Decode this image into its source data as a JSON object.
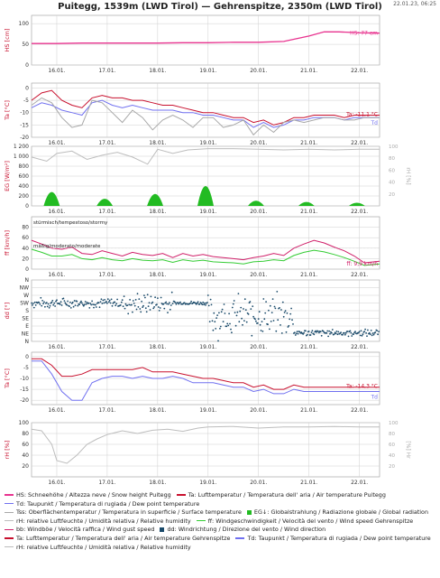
{
  "title": "Puitegg, 1539m (LWD Tirol) — Gehrenspitze, 2350m (LWD Tirol)",
  "timestamp": "22.01.23, 06:25",
  "colors": {
    "snow": "#e8338f",
    "air": "#c8102e",
    "dew": "#7070f0",
    "surface": "#a8a8a8",
    "radiation": "#22bb22",
    "gust": "#d0206a",
    "wind": "#33cc33",
    "direction": "#1a4a6a",
    "humidity": "#bdbdbd",
    "grid": "#cfcfcf",
    "axis_label": "#c8102e"
  },
  "chart_data": [
    {
      "type": "line",
      "panel": "snow_height",
      "ylabel": "HS [cm]",
      "yticks": [
        "100",
        "50",
        "0"
      ],
      "ylim": [
        0,
        120
      ],
      "x_ticks": [
        "16.01.",
        "17.01.",
        "18.01.",
        "19.01.",
        "20.01.",
        "21.01.",
        "22.01."
      ],
      "x_range_days": [
        15.5,
        22.4
      ],
      "series": [
        {
          "name": "HS",
          "color": "snow",
          "x": [
            15.5,
            16,
            16.5,
            17,
            17.5,
            18,
            18.5,
            19,
            19.5,
            20,
            20.5,
            21,
            21.3,
            21.6,
            22,
            22.4
          ],
          "y": [
            52,
            52,
            53,
            53,
            53,
            53,
            54,
            54,
            55,
            55,
            57,
            70,
            80,
            80,
            78,
            77
          ]
        }
      ],
      "end_label": "HS: 77 cm"
    },
    {
      "type": "line",
      "panel": "temperature_puitegg",
      "ylabel": "Ta [°C]",
      "yticks": [
        "0",
        "-5",
        "-10",
        "-15",
        "-20"
      ],
      "ylim": [
        -20,
        2
      ],
      "x_ticks": [
        "16.01.",
        "17.01.",
        "18.01.",
        "19.01.",
        "20.01.",
        "21.01.",
        "22.01."
      ],
      "series": [
        {
          "name": "Ta",
          "color": "air",
          "x": [
            15.5,
            15.7,
            15.9,
            16.1,
            16.3,
            16.5,
            16.7,
            16.9,
            17.1,
            17.3,
            17.5,
            17.7,
            17.9,
            18.1,
            18.3,
            18.5,
            18.7,
            18.9,
            19.1,
            19.3,
            19.5,
            19.7,
            19.9,
            20.1,
            20.3,
            20.5,
            20.7,
            20.9,
            21.1,
            21.3,
            21.5,
            21.7,
            21.9,
            22.1,
            22.4
          ],
          "y": [
            -5,
            -2,
            -1,
            -5,
            -7,
            -8,
            -4,
            -3,
            -4,
            -4,
            -5,
            -5,
            -6,
            -7,
            -7,
            -8,
            -9,
            -10,
            -10,
            -11,
            -12,
            -12,
            -14,
            -13,
            -15,
            -14,
            -12,
            -12,
            -11,
            -11,
            -11,
            -12,
            -11,
            -11,
            -11
          ]
        },
        {
          "name": "Td",
          "color": "dew",
          "x": [
            15.5,
            15.7,
            15.9,
            16.1,
            16.3,
            16.5,
            16.7,
            16.9,
            17.1,
            17.3,
            17.5,
            17.7,
            17.9,
            18.1,
            18.3,
            18.5,
            18.7,
            18.9,
            19.1,
            19.3,
            19.5,
            19.7,
            19.9,
            20.1,
            20.3,
            20.5,
            20.7,
            20.9,
            21.1,
            21.3,
            21.5,
            21.7,
            21.9,
            22.1,
            22.4
          ],
          "y": [
            -8,
            -6,
            -7,
            -9,
            -10,
            -11,
            -6,
            -5,
            -7,
            -8,
            -7,
            -8,
            -9,
            -9,
            -9,
            -10,
            -10,
            -11,
            -11,
            -12,
            -13,
            -13,
            -16,
            -14,
            -16,
            -15,
            -13,
            -13,
            -12,
            -12,
            -12,
            -13,
            -12,
            -12,
            -12
          ]
        },
        {
          "name": "Tss",
          "color": "surface",
          "x": [
            15.5,
            15.7,
            15.9,
            16.1,
            16.3,
            16.5,
            16.7,
            16.9,
            17.1,
            17.3,
            17.5,
            17.7,
            17.9,
            18.1,
            18.3,
            18.5,
            18.7,
            18.9,
            19.1,
            19.3,
            19.5,
            19.7,
            19.9,
            20.1,
            20.3,
            20.5,
            20.7,
            20.9,
            21.1,
            21.3,
            21.5,
            21.7,
            21.9,
            22.1,
            22.4
          ],
          "y": [
            -7,
            -4,
            -6,
            -12,
            -16,
            -15,
            -5,
            -6,
            -10,
            -14,
            -9,
            -12,
            -17,
            -13,
            -11,
            -13,
            -16,
            -12,
            -12,
            -16,
            -15,
            -13,
            -19,
            -15,
            -18,
            -14,
            -13,
            -14,
            -13,
            -12,
            -12,
            -13,
            -13,
            -12,
            -12
          ]
        }
      ],
      "end_labels": [
        "Ta: -11,1 °C",
        "Td"
      ]
    },
    {
      "type": "area",
      "panel": "radiation_humidity",
      "ylabel": "EG [W/m²]",
      "yticks": [
        "1 200",
        "1 000",
        "800",
        "600",
        "400",
        "200",
        "0"
      ],
      "ylim": [
        0,
        1200
      ],
      "y2label": "rH [%]",
      "y2ticks": [
        "100",
        "80",
        "60",
        "40",
        "20"
      ],
      "y2lim": [
        0,
        100
      ],
      "x_ticks": [
        "16.01.",
        "17.01.",
        "18.01.",
        "19.01.",
        "20.01.",
        "21.01.",
        "22.01."
      ],
      "series": [
        {
          "name": "EG",
          "color": "radiation",
          "daily_peaks_x": [
            15.9,
            16.95,
            17.95,
            18.95,
            19.95,
            20.95,
            21.95
          ],
          "daily_peaks_y": [
            350,
            180,
            300,
            500,
            130,
            100,
            80
          ]
        },
        {
          "name": "rH",
          "color": "humidity",
          "x": [
            15.5,
            15.8,
            16.0,
            16.3,
            16.6,
            16.9,
            17.2,
            17.5,
            17.8,
            18.0,
            18.3,
            18.6,
            19.0,
            19.5,
            20.0,
            20.5,
            21.0,
            21.5,
            22.0,
            22.4
          ],
          "y": [
            82,
            75,
            88,
            92,
            78,
            85,
            90,
            82,
            70,
            95,
            88,
            94,
            96,
            96,
            95,
            94,
            95,
            94,
            95,
            95
          ]
        }
      ]
    },
    {
      "type": "line",
      "panel": "wind_speed",
      "ylabel": "ff [km/h]",
      "yticks": [
        "80",
        "60",
        "40",
        "20",
        "0"
      ],
      "ylim": [
        0,
        100
      ],
      "x_ticks": [
        "16.01.",
        "17.01.",
        "18.01.",
        "19.01.",
        "20.01.",
        "21.01.",
        "22.01."
      ],
      "annotations": [
        "stürmisch/tempestoso/stormy",
        "mäßig/moderato/moderate"
      ],
      "series": [
        {
          "name": "bb",
          "color": "gust",
          "x": [
            15.5,
            15.7,
            15.9,
            16.1,
            16.3,
            16.5,
            16.7,
            16.9,
            17.1,
            17.3,
            17.5,
            17.7,
            17.9,
            18.1,
            18.3,
            18.5,
            18.7,
            18.9,
            19.1,
            19.3,
            19.5,
            19.7,
            19.9,
            20.1,
            20.3,
            20.5,
            20.7,
            20.9,
            21.1,
            21.3,
            21.5,
            21.7,
            21.9,
            22.1,
            22.4
          ],
          "y": [
            55,
            48,
            40,
            38,
            42,
            30,
            28,
            35,
            30,
            25,
            32,
            28,
            26,
            30,
            22,
            30,
            25,
            28,
            24,
            22,
            20,
            18,
            22,
            25,
            30,
            26,
            40,
            48,
            55,
            50,
            42,
            35,
            25,
            12,
            15
          ]
        },
        {
          "name": "ff",
          "color": "wind",
          "x": [
            15.5,
            15.7,
            15.9,
            16.1,
            16.3,
            16.5,
            16.7,
            16.9,
            17.1,
            17.3,
            17.5,
            17.7,
            17.9,
            18.1,
            18.3,
            18.5,
            18.7,
            18.9,
            19.1,
            19.3,
            19.5,
            19.7,
            19.9,
            20.1,
            20.3,
            20.5,
            20.7,
            20.9,
            21.1,
            21.3,
            21.5,
            21.7,
            21.9,
            22.1,
            22.4
          ],
          "y": [
            38,
            32,
            25,
            25,
            28,
            20,
            18,
            22,
            18,
            16,
            20,
            17,
            16,
            18,
            13,
            18,
            15,
            17,
            14,
            13,
            12,
            10,
            14,
            15,
            18,
            16,
            26,
            32,
            36,
            33,
            28,
            22,
            15,
            7,
            10
          ]
        }
      ],
      "end_label": "ff: 9,9 km/h"
    },
    {
      "type": "scatter",
      "panel": "wind_direction",
      "ylabel": "dd [°]",
      "yticks": [
        "N",
        "NW",
        "W",
        "SW",
        "S",
        "SE",
        "E",
        "NE",
        "N"
      ],
      "ylim": [
        0,
        360
      ],
      "x_ticks": [
        "16.01.",
        "17.01.",
        "18.01.",
        "19.01.",
        "20.01.",
        "21.01.",
        "22.01."
      ],
      "series": [
        {
          "name": "dd",
          "color": "direction",
          "segments": [
            {
              "x_from": 15.5,
              "x_to": 17.3,
              "dir_center": 225,
              "spread": 35
            },
            {
              "x_from": 17.3,
              "x_to": 18.3,
              "dir_center": 220,
              "spread": 80
            },
            {
              "x_from": 18.3,
              "x_to": 19.0,
              "dir_center": 225,
              "spread": 15
            },
            {
              "x_from": 19.0,
              "x_to": 20.7,
              "dir_center": 150,
              "spread": 150
            },
            {
              "x_from": 20.7,
              "x_to": 22.4,
              "dir_center": 50,
              "spread": 25
            }
          ]
        }
      ]
    },
    {
      "type": "line",
      "panel": "temperature_gehrenspitze",
      "ylabel": "Ta [°C]",
      "yticks": [
        "0",
        "-5",
        "-10",
        "-15",
        "-20"
      ],
      "ylim": [
        -22,
        2
      ],
      "x_ticks": [
        "16.01.",
        "17.01.",
        "18.01.",
        "19.01.",
        "20.01.",
        "21.01.",
        "22.01."
      ],
      "series": [
        {
          "name": "Ta",
          "color": "air",
          "x": [
            15.5,
            15.7,
            15.9,
            16.1,
            16.3,
            16.5,
            16.7,
            16.9,
            17.1,
            17.3,
            17.5,
            17.7,
            17.9,
            18.1,
            18.3,
            18.5,
            18.7,
            18.9,
            19.1,
            19.3,
            19.5,
            19.7,
            19.9,
            20.1,
            20.3,
            20.5,
            20.7,
            20.9,
            21.1,
            21.3,
            21.5,
            21.7,
            21.9,
            22.1,
            22.4
          ],
          "y": [
            -1,
            -1,
            -4,
            -9,
            -9,
            -8,
            -6,
            -6,
            -6,
            -6,
            -6,
            -5,
            -7,
            -7,
            -7,
            -8,
            -9,
            -10,
            -10,
            -11,
            -12,
            -12,
            -14,
            -13,
            -15,
            -15,
            -13,
            -14,
            -14,
            -14,
            -14,
            -14,
            -14,
            -14,
            -14
          ]
        },
        {
          "name": "Td",
          "color": "dew",
          "x": [
            15.5,
            15.7,
            15.9,
            16.1,
            16.3,
            16.5,
            16.7,
            16.9,
            17.1,
            17.3,
            17.5,
            17.7,
            17.9,
            18.1,
            18.3,
            18.5,
            18.7,
            18.9,
            19.1,
            19.3,
            19.5,
            19.7,
            19.9,
            20.1,
            20.3,
            20.5,
            20.7,
            20.9,
            21.1,
            21.3,
            21.5,
            21.7,
            21.9,
            22.1,
            22.4
          ],
          "y": [
            -2,
            -2,
            -8,
            -16,
            -20,
            -20,
            -12,
            -10,
            -9,
            -9,
            -10,
            -9,
            -10,
            -10,
            -9,
            -10,
            -12,
            -12,
            -12,
            -13,
            -14,
            -14,
            -16,
            -15,
            -17,
            -17,
            -15,
            -16,
            -16,
            -16,
            -16,
            -16,
            -16,
            -16,
            -16
          ]
        }
      ],
      "end_labels": [
        "Ta: -14,3 °C",
        "Td"
      ]
    },
    {
      "type": "line",
      "panel": "humidity_gehrenspitze",
      "ylabel": "rH [%]",
      "yticks": [
        "100",
        "80",
        "60",
        "40",
        "20"
      ],
      "ylim": [
        0,
        100
      ],
      "x_ticks": [
        "16.01.",
        "17.01.",
        "18.01.",
        "19.01.",
        "20.01.",
        "21.01.",
        "22.01."
      ],
      "series": [
        {
          "name": "rH",
          "color": "humidity",
          "x": [
            15.5,
            15.7,
            15.9,
            16.0,
            16.2,
            16.4,
            16.6,
            16.8,
            17.0,
            17.3,
            17.6,
            17.9,
            18.2,
            18.5,
            18.8,
            19.0,
            19.5,
            20.0,
            20.5,
            21.0,
            21.5,
            22.0,
            22.4
          ],
          "y": [
            88,
            85,
            60,
            30,
            25,
            40,
            60,
            70,
            78,
            85,
            80,
            86,
            88,
            84,
            90,
            92,
            93,
            90,
            92,
            92,
            93,
            92,
            92
          ]
        }
      ]
    }
  ],
  "legend": [
    [
      {
        "swatch": "line",
        "color": "snow",
        "text": "HS: Schneehöhe / Altezza neve / Snow height  Puitegg"
      },
      {
        "swatch": "line",
        "color": "air",
        "text": "Ta: Lufttemperatur / Temperatura dell' aria / Air temperature  Puitegg"
      }
    ],
    [
      {
        "swatch": "line",
        "color": "dew",
        "text": "Td: Taupunkt / Temperatura di rugiada / Dew point temperature"
      }
    ],
    [
      {
        "swatch": "line",
        "color": "surface",
        "text": "Tss: Oberflächentemperatur / Temperatura in superficie / Surface temperature"
      },
      {
        "swatch": "square",
        "color": "radiation",
        "text": "EG↓: Globalstrahlung / Radiazione globale / Global radiation"
      }
    ],
    [
      {
        "swatch": "line",
        "color": "humidity",
        "text": "rH: relative Luftfeuchte / Umidità relativa / Relative humidity"
      },
      {
        "swatch": "line",
        "color": "wind",
        "text": "ff: Windgeschwindigkeit / Velocità del vento / Wind speed  Gehrenspitze"
      }
    ],
    [
      {
        "swatch": "line",
        "color": "gust",
        "text": "bb: Windböe / Velocità raffica / Wind gust speed"
      },
      {
        "swatch": "square",
        "color": "direction",
        "text": "dd: Windrichtung / Direzione del vento / Wind direction"
      }
    ],
    [
      {
        "swatch": "line",
        "color": "air",
        "text": "Ta: Lufttemperatur / Temperatura dell' aria / Air temperature  Gehrenspitze"
      },
      {
        "swatch": "line",
        "color": "dew",
        "text": "Td: Taupunkt / Temperatura di rugiada / Dew point temperature"
      }
    ],
    [
      {
        "swatch": "line",
        "color": "humidity",
        "text": "rH: relative Luftfeuchte / Umidità relativa / Relative humidity"
      }
    ]
  ]
}
